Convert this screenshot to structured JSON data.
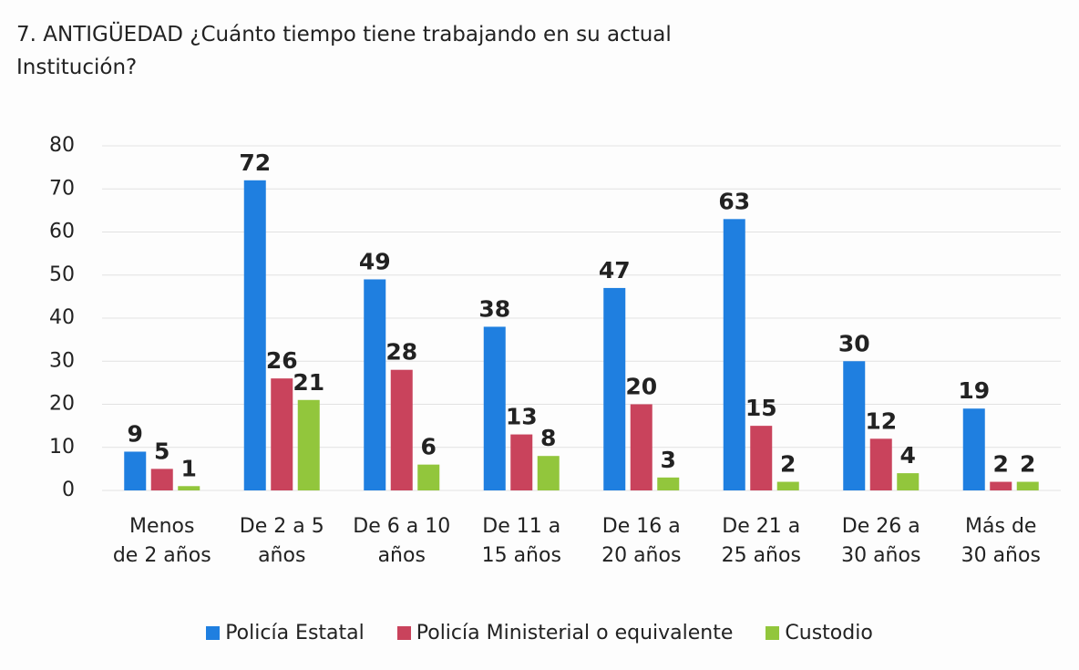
{
  "chart_data": {
    "type": "bar",
    "title": "7. ANTIGÜEDAD ¿Cuánto tiempo tiene trabajando en su actual\nInstitución?",
    "categories": [
      "Menos\nde 2 años",
      "De 2 a 5\naños",
      "De 6 a 10\naños",
      "De 11 a\n15 años",
      "De 16 a\n20 años",
      "De 21 a\n25 años",
      "De 26 a\n30 años",
      "Más de\n30 años"
    ],
    "series": [
      {
        "name": "Policía Estatal",
        "color": "#1f7fe0",
        "values": [
          9,
          72,
          49,
          38,
          47,
          63,
          30,
          19
        ]
      },
      {
        "name": "Policía Ministerial o equivalente",
        "color": "#c9435c",
        "values": [
          5,
          26,
          28,
          13,
          20,
          15,
          12,
          2
        ]
      },
      {
        "name": "Custodio",
        "color": "#92c63c",
        "values": [
          1,
          21,
          6,
          8,
          3,
          2,
          4,
          2
        ]
      }
    ],
    "ylim": [
      0,
      80
    ],
    "yticks": [
      0,
      10,
      20,
      30,
      40,
      50,
      60,
      70,
      80
    ],
    "grid": true,
    "legend": "bottom"
  }
}
